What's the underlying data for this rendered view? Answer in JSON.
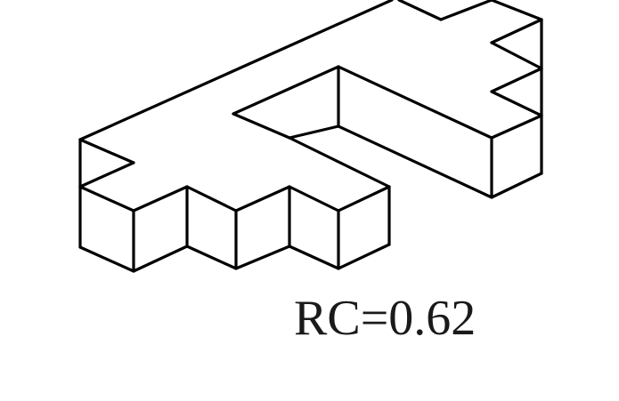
{
  "figure": {
    "caption": "RC=0.62",
    "line_color": "#000000",
    "background_color": "#ffffff"
  }
}
